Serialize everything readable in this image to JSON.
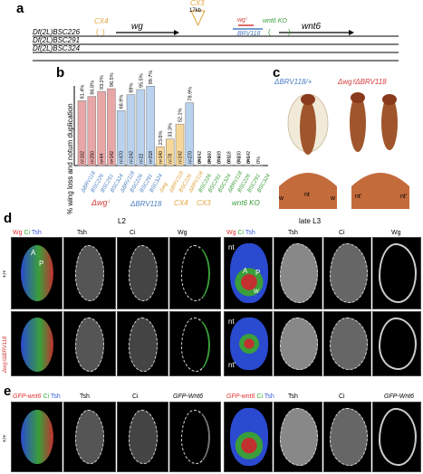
{
  "panels": {
    "a": "a",
    "b": "b",
    "c": "c",
    "d": "d",
    "e": "e"
  },
  "panel_a": {
    "labels": {
      "cx4": "CX4",
      "cx3": "CX3",
      "kb": "17kb",
      "wg": "wg",
      "wgi": "wgⁱ",
      "brv": "BRV118",
      "wnt6ko": "wnt6 KO",
      "wnt6": "wnt6"
    },
    "df": [
      "Df(2L)BSC226",
      "Df(2L)BSC291",
      "Df(2L)BSC324"
    ]
  },
  "chart_data": {
    "type": "bar",
    "ylabel": "% wing loss and notum duplication",
    "categories": [
      "ΔBRV118",
      "BSC226",
      "BSC291",
      "BSC324",
      "ΔBRV118",
      "BSC226",
      "BSC291",
      "BSC324",
      "Δwg",
      "ΔBRV118",
      "BSC226",
      "ΔBRV118",
      "BSC226",
      "BSC291",
      "BSC324",
      "ΔBRV118",
      "BSC226",
      "BSC291",
      "BSC324"
    ],
    "values": [
      81.4,
      86.8,
      93.2,
      96.5,
      68.9,
      89,
      95.5,
      99.7,
      23.6,
      33.3,
      52.1,
      78.9,
      0,
      0,
      0,
      0,
      0,
      0,
      0
    ],
    "value_labels": [
      "81.4%",
      "86.8%",
      "93.2%",
      "96.5%",
      "68.9%",
      "89%",
      "95.5%",
      "99.7%",
      "23.6%",
      "33.3%",
      "52.1%",
      "78.9%",
      "0%",
      "0%",
      "0%",
      "0%",
      "0%",
      "0%",
      "0%"
    ],
    "n_labels": [
      "n=102",
      "n=250",
      "n=44",
      "n=142",
      "n=470",
      "n=242",
      "n=22",
      "n=318",
      "n=140",
      "n=78",
      "n=242",
      "n=270",
      "n=742",
      "n=360",
      "n=469",
      "n=118",
      "n=200",
      "n=142",
      ""
    ],
    "colors": [
      "#e8a6a6",
      "#e8a6a6",
      "#e8a6a6",
      "#e8a6a6",
      "#b9d2ee",
      "#b9d2ee",
      "#b9d2ee",
      "#b9d2ee",
      "#f7d69a",
      "#f7d69a",
      "#f7d69a",
      "#b9d2ee",
      "#ffffff",
      "#ffffff",
      "#ffffff",
      "#ffffff",
      "#ffffff",
      "#ffffff",
      "#ffffff"
    ],
    "group_labels": [
      {
        "text": "Δwgⁱ",
        "color": "#d33b3b"
      },
      {
        "text": "ΔBRV118",
        "color": "#4a7fc1"
      },
      {
        "text": "CX4",
        "color": "#e0a23a"
      },
      {
        "text": "CX3",
        "color": "#e0a23a"
      },
      {
        "text": "wnt6 KO",
        "color": "#3a9e3a"
      }
    ],
    "ylim": [
      0,
      100
    ]
  },
  "panel_c": {
    "g1": "ΔBRV118/+",
    "g2": "Δwgⁱ/ΔBRV118",
    "nt": "nt",
    "w": "w",
    "ntp": "nt'"
  },
  "panel_d": {
    "l2": "L2",
    "late": "late L3",
    "legend": {
      "wg": "Wg",
      "ci": "Ci",
      "tsh": "Tsh"
    },
    "cols": [
      "Tsh",
      "Ci",
      "Wg"
    ],
    "row1": "+/+",
    "row2": "Δwgⁱ/ΔBRV118",
    "inlay": {
      "a": "A",
      "p": "P",
      "nt": "nt",
      "w": "w",
      "ntp": "nt'"
    }
  },
  "panel_e": {
    "legend": {
      "gfp": "GFP-wnt6",
      "ci": "Ci",
      "tsh": "Tsh"
    },
    "cols": [
      "Tsh",
      "Ci",
      "GFP-Wnt6"
    ],
    "row1": "+/+"
  }
}
